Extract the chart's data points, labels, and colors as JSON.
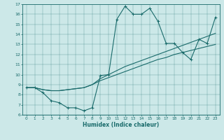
{
  "title": "",
  "xlabel": "Humidex (Indice chaleur)",
  "ylabel": "",
  "xlim": [
    -0.5,
    23.5
  ],
  "ylim": [
    6,
    17
  ],
  "xticks": [
    0,
    1,
    2,
    3,
    4,
    5,
    6,
    7,
    8,
    9,
    10,
    11,
    12,
    13,
    14,
    15,
    16,
    17,
    18,
    19,
    20,
    21,
    22,
    23
  ],
  "yticks": [
    6,
    7,
    8,
    9,
    10,
    11,
    12,
    13,
    14,
    15,
    16,
    17
  ],
  "bg_color": "#cce8e8",
  "line_color": "#1a6b6b",
  "line1_x": [
    0,
    1,
    2,
    3,
    4,
    5,
    6,
    7,
    8,
    9,
    10,
    11,
    12,
    13,
    14,
    15,
    16,
    17,
    18,
    19,
    20,
    21,
    22,
    23
  ],
  "line1_y": [
    8.7,
    8.7,
    8.2,
    7.4,
    7.2,
    6.7,
    6.7,
    6.4,
    6.7,
    9.9,
    10.0,
    15.5,
    16.8,
    16.0,
    16.0,
    16.6,
    15.3,
    13.1,
    13.1,
    12.2,
    11.5,
    13.5,
    13.1,
    15.7
  ],
  "line2_x": [
    0,
    1,
    2,
    3,
    4,
    5,
    6,
    7,
    8,
    9,
    10,
    11,
    12,
    13,
    14,
    15,
    16,
    17,
    18,
    19,
    20,
    21,
    22,
    23
  ],
  "line2_y": [
    8.7,
    8.7,
    8.5,
    8.4,
    8.4,
    8.5,
    8.6,
    8.7,
    9.0,
    9.4,
    9.7,
    10.0,
    10.3,
    10.6,
    10.9,
    11.2,
    11.5,
    11.7,
    12.0,
    12.2,
    12.4,
    12.6,
    12.8,
    13.0
  ],
  "line3_x": [
    0,
    1,
    2,
    3,
    4,
    5,
    6,
    7,
    8,
    9,
    10,
    11,
    12,
    13,
    14,
    15,
    16,
    17,
    18,
    19,
    20,
    21,
    22,
    23
  ],
  "line3_y": [
    8.7,
    8.7,
    8.5,
    8.4,
    8.4,
    8.5,
    8.6,
    8.7,
    9.0,
    9.6,
    10.0,
    10.4,
    10.8,
    11.1,
    11.4,
    11.7,
    12.0,
    12.3,
    12.6,
    12.9,
    13.2,
    13.5,
    13.8,
    14.1
  ]
}
